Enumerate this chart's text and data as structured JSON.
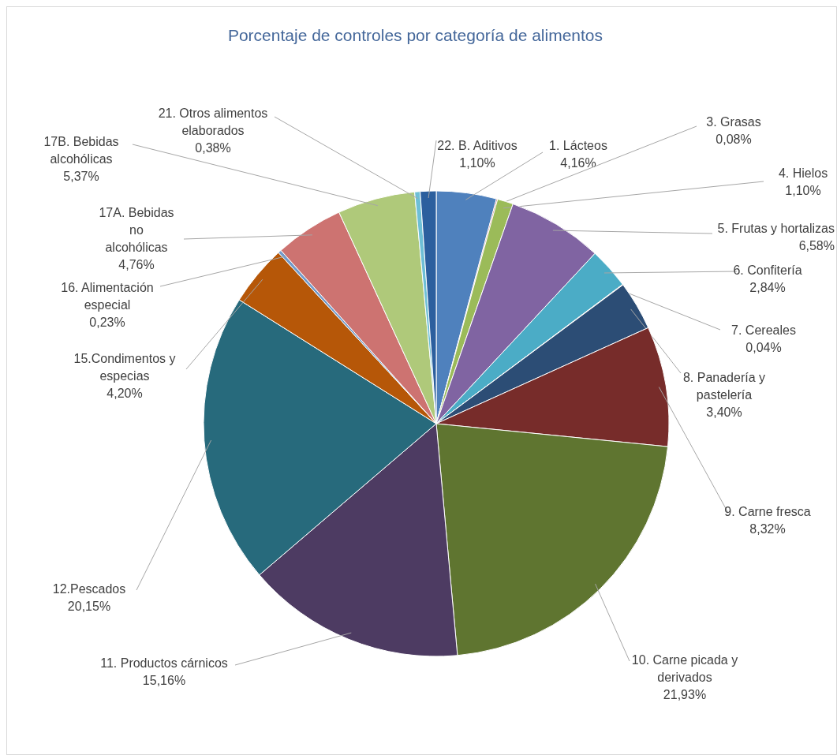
{
  "chart_data": {
    "type": "pie",
    "title": "Porcentaje de controles por categoría de alimentos",
    "categories": [
      "1. Lácteos",
      "3. Grasas",
      "4. Hielos",
      "5. Frutas y hortalizas",
      "6. Confitería",
      "7. Cereales",
      "8. Panadería y pastelería",
      "9. Carne fresca",
      "10. Carne picada y derivados",
      "11. Productos cárnicos",
      "12.Pescados",
      "15.Condimentos y especias",
      "16. Alimentación especial",
      "17A. Bebidas no alcohólicas",
      "17B. Bebidas alcohólicas",
      "21. Otros alimentos elaborados",
      "22. B. Aditivos"
    ],
    "values": [
      4.16,
      0.08,
      1.1,
      6.58,
      2.84,
      0.04,
      3.4,
      8.32,
      21.93,
      15.16,
      20.15,
      4.2,
      0.23,
      4.76,
      5.37,
      0.38,
      1.1
    ],
    "value_labels": [
      "4,16%",
      "0,08%",
      "1,10%",
      "6,58%",
      "2,84%",
      "0,04%",
      "3,40%",
      "8,32%",
      "21,93%",
      "15,16%",
      "20,15%",
      "4,20%",
      "0,23%",
      "4,76%",
      "5,37%",
      "0,38%",
      "1,10%"
    ],
    "colors": [
      "#4f81bd",
      "#c0504d",
      "#9bbb59",
      "#8064a2",
      "#4bacc6",
      "#f79646",
      "#2c4d75",
      "#772c2a",
      "#5f7530",
      "#4d3b62",
      "#276a7c",
      "#b65708",
      "#729aca",
      "#cd7371",
      "#afc97a",
      "#6ebfd6",
      "#2c5f9e"
    ]
  }
}
